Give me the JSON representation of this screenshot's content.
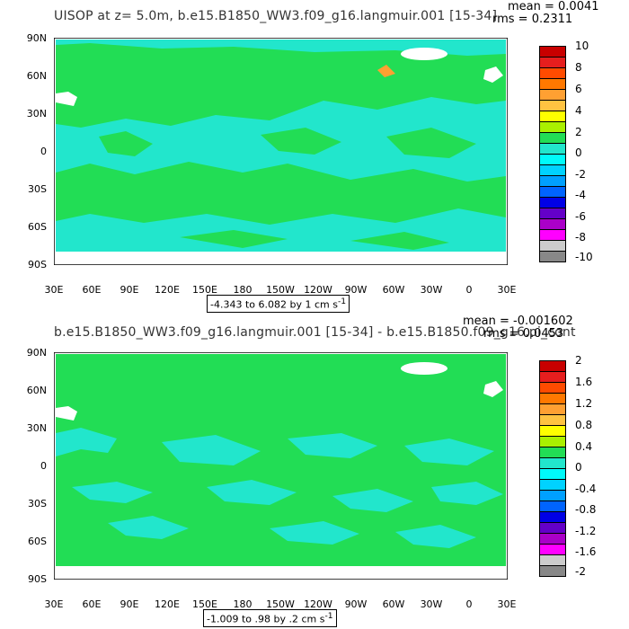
{
  "colors": {
    "land": "#ffffff",
    "ocean_base": "#22dd55",
    "ocean_low": "#22e6cc",
    "frame": "#000000"
  },
  "top": {
    "title": "UISOP at z=    5.0m, b.e15.B1850_WW3.f09_g16.langmuir.001 [15-34]",
    "mean": "mean = 0.0041",
    "rms": "rms = 0.2311",
    "range_text": "-4.343 to 6.082 by 1 cm s",
    "range_exp": "-1",
    "colorbar_labels": [
      "10",
      "8",
      "6",
      "4",
      "2",
      "0",
      "-2",
      "-4",
      "-6",
      "-8",
      "-10"
    ],
    "colorbar_colors": [
      "#c80000",
      "#e61e1e",
      "#ff4b00",
      "#ff7800",
      "#ffa032",
      "#ffc341",
      "#ffff00",
      "#aaf000",
      "#22dd55",
      "#22e6cc",
      "#00fafa",
      "#00d2ff",
      "#00a0ff",
      "#0064ff",
      "#0000e6",
      "#6400c8",
      "#aa00c8",
      "#ff00ff",
      "#cccccc",
      "#888888"
    ]
  },
  "bottom": {
    "title": "b.e15.B1850_WW3.f09_g16.langmuir.001 [15-34] - b.e15.B1850.f09_g16.pi_cont",
    "mean": "mean = -0.001602",
    "rms": "rms = 0.0453",
    "range_text": "-1.009 to .98 by .2 cm s",
    "range_exp": "-1",
    "colorbar_labels": [
      "2",
      "1.6",
      "1.2",
      "0.8",
      "0.4",
      "0",
      "-0.4",
      "-0.8",
      "-1.2",
      "-1.6",
      "-2"
    ],
    "colorbar_colors": [
      "#c80000",
      "#e61e1e",
      "#ff4b00",
      "#ff7800",
      "#ffa032",
      "#ffc341",
      "#ffff00",
      "#aaf000",
      "#22dd55",
      "#22e6cc",
      "#00fafa",
      "#00d2ff",
      "#00a0ff",
      "#0064ff",
      "#0000e6",
      "#6400c8",
      "#aa00c8",
      "#ff00ff",
      "#cccccc",
      "#888888"
    ]
  },
  "axes": {
    "lat_labels": [
      "90N",
      "60N",
      "30N",
      "0",
      "30S",
      "60S",
      "90S"
    ],
    "lon_labels": [
      "30E",
      "60E",
      "90E",
      "120E",
      "150E",
      "180",
      "150W",
      "120W",
      "90W",
      "60W",
      "30W",
      "0",
      "30E"
    ]
  }
}
